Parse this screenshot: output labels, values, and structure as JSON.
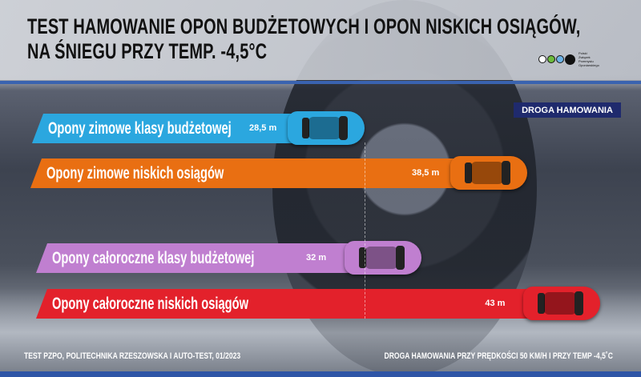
{
  "header": {
    "title_line1": "TEST HAMOWANIE OPON BUDŻETOWYCH I OPON NISKICH OSIĄGÓW,",
    "title_line2": "NA ŚNIEGU PRZY TEMP. -4,5°C",
    "logo_text": "Polski Związek Przemysłu Oponiarskiego"
  },
  "chart_data": {
    "type": "bar",
    "orientation": "horizontal",
    "legend_label": "DROGA HAMOWANIA",
    "categories": [
      "Opony zimowe klasy budżetowej",
      "Opony zimowe niskich osiągów",
      "Opony całoroczne klasy budżetowej",
      "Opony całoroczne niskich osiągów"
    ],
    "values": [
      28.5,
      38.5,
      32,
      43
    ],
    "value_labels": [
      "28,5 m",
      "38,5 m",
      "32 m",
      "43 m"
    ],
    "unit": "m",
    "colors": [
      "#2ba7df",
      "#e96f12",
      "#c07fd0",
      "#e3212b"
    ]
  },
  "footer": {
    "source": "TEST PZPO, POLITECHNIKA RZESZOWSKA I AUTO-TEST, 01/2023",
    "note": "DROGA HAMOWANIA PRZY PRĘDKOŚCI 50 KM/H I PRZY TEMP -4,5˚C"
  }
}
